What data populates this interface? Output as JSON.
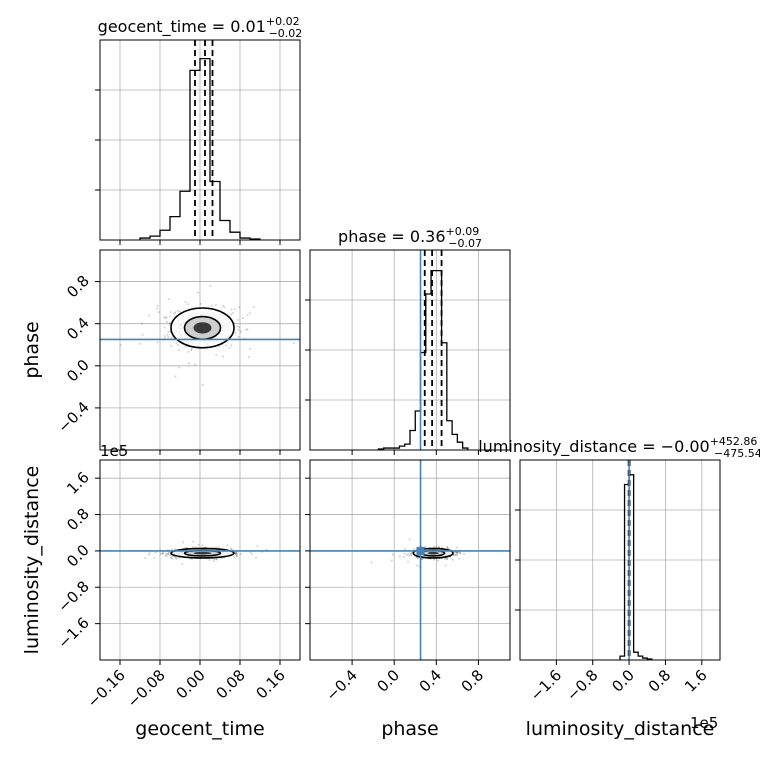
{
  "chart_data": {
    "type": "corner",
    "parameters": [
      "geocent_time",
      "phase",
      "luminosity_distance"
    ],
    "truths": {
      "geocent_time": null,
      "phase": 0.25,
      "luminosity_distance": 0.0
    },
    "truth_color": "#4682b4",
    "grid": true,
    "offset_text": "1e5",
    "panels": [
      {
        "id": "geocent_time",
        "kind": "hist",
        "title": {
          "main": "geocent_time = 0.01",
          "sup": "+0.02",
          "sub": "−0.02"
        },
        "xlim": [
          -0.2,
          0.2
        ],
        "bin_edges": [
          -0.12,
          -0.1,
          -0.08,
          -0.06,
          -0.04,
          -0.02,
          0.0,
          0.02,
          0.04,
          0.06,
          0.08,
          0.1,
          0.12
        ],
        "counts": [
          0.01,
          0.02,
          0.05,
          0.12,
          0.25,
          0.87,
          0.93,
          0.3,
          0.1,
          0.04,
          0.01,
          0.005
        ],
        "quantiles": [
          -0.01,
          0.01,
          0.025
        ],
        "ymax": 1.0
      },
      {
        "id": "phase-vs-geocent",
        "kind": "scatter2d",
        "x": "geocent_time",
        "y": "phase",
        "xlim": [
          -0.2,
          0.2
        ],
        "ylim": [
          -0.8,
          1.1
        ],
        "center": [
          0.005,
          0.36
        ],
        "spread": [
          0.03,
          0.09
        ],
        "yticks": [
          -0.4,
          0.0,
          0.4,
          0.8
        ],
        "ytick_labels": [
          "−0.4",
          "0.0",
          "0.4",
          "0.8"
        ],
        "ylabel": "phase"
      },
      {
        "id": "phase",
        "kind": "hist",
        "title": {
          "main": "phase = 0.36",
          "sup": "+0.09",
          "sub": "−0.07"
        },
        "xlim": [
          -0.8,
          1.1
        ],
        "bin_edges": [
          -0.15,
          -0.1,
          -0.05,
          0.0,
          0.05,
          0.1,
          0.15,
          0.2,
          0.25,
          0.3,
          0.35,
          0.4,
          0.45,
          0.5,
          0.55,
          0.6,
          0.65,
          0.7
        ],
        "counts": [
          0.005,
          0.01,
          0.01,
          0.01,
          0.02,
          0.03,
          0.1,
          0.2,
          0.5,
          0.8,
          0.92,
          0.92,
          0.55,
          0.15,
          0.08,
          0.04,
          0.01
        ],
        "quantiles": [
          0.29,
          0.36,
          0.45
        ],
        "ymax": 1.0
      },
      {
        "id": "lumdist-vs-geocent",
        "kind": "scatter2d",
        "x": "geocent_time",
        "y": "luminosity_distance",
        "xlim": [
          -0.2,
          0.2
        ],
        "ylim": [
          -2.4,
          2.0
        ],
        "center": [
          0.005,
          -0.05
        ],
        "spread": [
          0.03,
          0.05
        ],
        "yticks": [
          -1.6,
          -0.8,
          0.0,
          0.8,
          1.6
        ],
        "ytick_labels": [
          "−1.6",
          "−0.8",
          "0.0",
          "0.8",
          "1.6"
        ],
        "ylabel": "luminosity_distance",
        "xticks": [
          -0.16,
          -0.08,
          0.0,
          0.08,
          0.16
        ],
        "xtick_labels": [
          "−0.16",
          "−0.08",
          "0.00",
          "0.08",
          "0.16"
        ],
        "xlabel": "geocent_time"
      },
      {
        "id": "lumdist-vs-phase",
        "kind": "scatter2d",
        "x": "phase",
        "y": "luminosity_distance",
        "xlim": [
          -0.8,
          1.1
        ],
        "ylim": [
          -2.4,
          2.0
        ],
        "center": [
          0.37,
          -0.05
        ],
        "spread": [
          0.09,
          0.05
        ],
        "xticks": [
          -0.4,
          0.0,
          0.4,
          0.8
        ],
        "xtick_labels": [
          "−0.4",
          "0.0",
          "0.4",
          "0.8"
        ],
        "xlabel": "phase"
      },
      {
        "id": "luminosity_distance",
        "kind": "hist",
        "title": {
          "main": "luminosity_distance = −0.00",
          "sup": "+452.86",
          "sub": "−475.54"
        },
        "xlim": [
          -2.4,
          2.0
        ],
        "bin_edges": [
          -0.2,
          -0.1,
          0.0,
          0.1,
          0.2,
          0.3,
          0.4,
          0.5
        ],
        "counts": [
          0.02,
          0.9,
          0.95,
          0.04,
          0.02,
          0.01,
          0.005
        ],
        "quantiles": [
          -0.01,
          0.0,
          0.01
        ],
        "ymax": 1.0,
        "xticks": [
          -1.6,
          -0.8,
          0.0,
          0.8,
          1.6
        ],
        "xtick_labels": [
          "−1.6",
          "−0.8",
          "0.0",
          "0.8",
          "1.6"
        ],
        "xlabel": "luminosity_distance"
      }
    ]
  }
}
